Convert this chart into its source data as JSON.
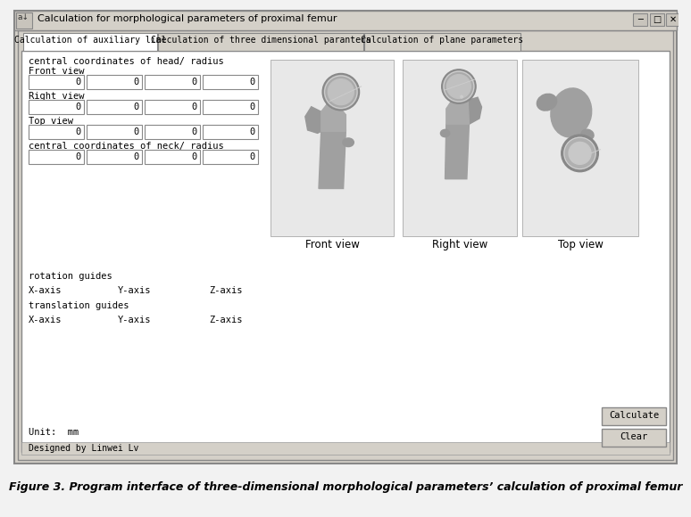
{
  "title": "Calculation for morphological parameters of proximal femur",
  "tab1": "Calculation of auxiliary line",
  "tab2": "Calculation of three dimensional paranters",
  "tab3": "Calculation of plane parameters",
  "label_head": "central coordinates of head/ radius",
  "label_neck": "central coordinates of neck/ radius",
  "label_front_view": "Front view",
  "label_right_view": "Right view",
  "label_top_view": "Top view",
  "label_rotation": "rotation guides",
  "label_translation": "translation guides",
  "label_xaxis": "X-axis",
  "label_yaxis": "Y-axis",
  "label_zaxis": "Z-axis",
  "label_unit": "Unit:  mm",
  "label_designer": "Designed by Linwei Lv",
  "btn_calculate": "Calculate",
  "btn_clear": "Clear",
  "figure_caption": "Figure 3. Program interface of three-dimensional morphological parameters’ calculation of proximal femur",
  "win_bg": "#d4d0c8",
  "content_bg": "#ffffff",
  "title_bar_color": "#0a246a",
  "title_text_color": "#ffffff",
  "border_color": "#888888",
  "tab_active_bg": "#ffffff",
  "tab_inactive_bg": "#d4d0c8",
  "input_bg": "#ffffff",
  "button_bg": "#d4d0c8",
  "femur_color": "#9a9a9a",
  "femur_light": "#c0c0c0",
  "femur_dark": "#707070"
}
